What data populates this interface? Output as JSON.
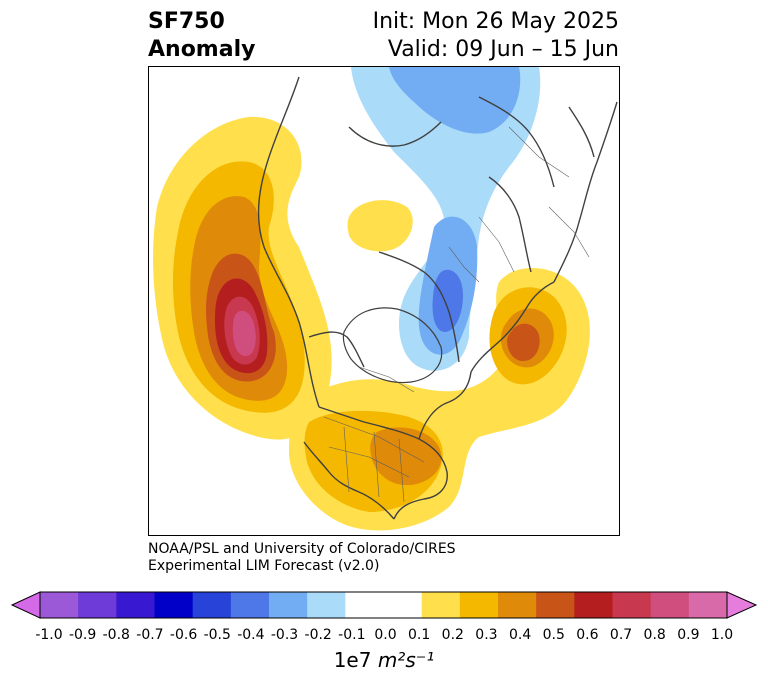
{
  "header": {
    "variable": "SF750",
    "field": "Anomaly",
    "init": "Init: Mon 26 May 2025",
    "valid": "Valid: 09 Jun – 15 Jun"
  },
  "credit": {
    "line1": "NOAA/PSL and University of Colorado/CIRES",
    "line2": "Experimental LIM Forecast (v2.0)"
  },
  "colorbar": {
    "ticks": [
      "-1.0",
      "-0.9",
      "-0.8",
      "-0.7",
      "-0.6",
      "-0.5",
      "-0.4",
      "-0.3",
      "-0.2",
      "-0.1",
      "0.0",
      "0.1",
      "0.2",
      "0.3",
      "0.4",
      "0.5",
      "0.6",
      "0.7",
      "0.8",
      "0.9",
      "1.0"
    ],
    "colors": [
      "#9b59d8",
      "#6e3ad8",
      "#3818d0",
      "#0000c8",
      "#2844d8",
      "#4e78e8",
      "#72acf2",
      "#aadcfa",
      "#ffffff",
      "#ffffff",
      "#ffe04c",
      "#f4b800",
      "#e08a0a",
      "#c85418",
      "#b41e1e",
      "#c8384e",
      "#d04e7e",
      "#d86aaa"
    ],
    "extend_min_color": "#d46ae8",
    "extend_max_color": "#e67cdc",
    "label_prefix": "1e7",
    "label_unit": "m²s⁻¹"
  }
}
